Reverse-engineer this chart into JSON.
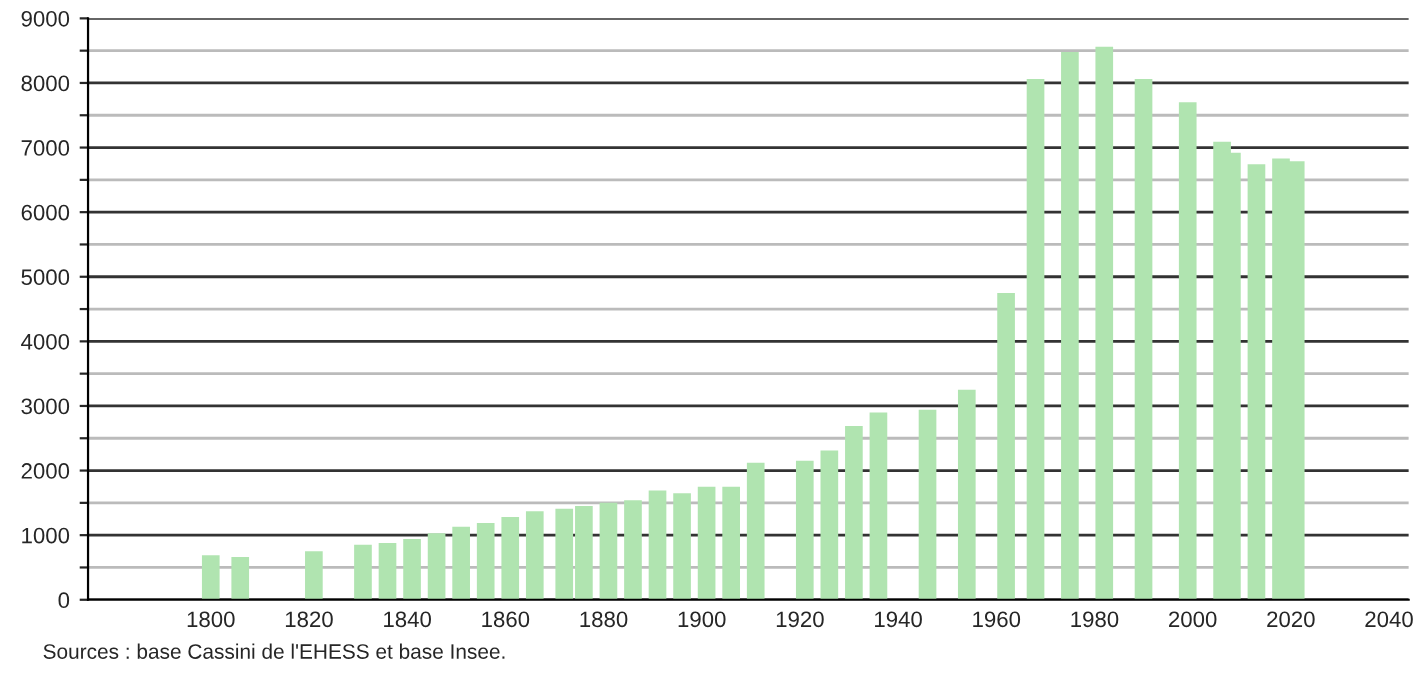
{
  "chart_data": {
    "type": "bar",
    "x": [
      1800,
      1806,
      1821,
      1831,
      1836,
      1841,
      1846,
      1851,
      1856,
      1861,
      1866,
      1872,
      1876,
      1881,
      1886,
      1891,
      1896,
      1901,
      1906,
      1911,
      1921,
      1926,
      1931,
      1936,
      1946,
      1954,
      1962,
      1968,
      1975,
      1982,
      1990,
      1999,
      2006,
      2008,
      2013,
      2018,
      2021
    ],
    "values": [
      690,
      660,
      750,
      850,
      880,
      940,
      1030,
      1130,
      1190,
      1280,
      1370,
      1410,
      1450,
      1500,
      1540,
      1690,
      1650,
      1750,
      1750,
      2120,
      2150,
      2310,
      2690,
      2900,
      2940,
      3250,
      4750,
      8060,
      8480,
      8560,
      8060,
      7700,
      7090,
      6920,
      6740,
      6830,
      6790
    ],
    "color": "#b0e4b0",
    "xlim": [
      1775,
      2044
    ],
    "xticks": [
      1800,
      1820,
      1840,
      1860,
      1880,
      1900,
      1920,
      1940,
      1960,
      1980,
      2000,
      2020,
      2040
    ],
    "ylim": [
      0,
      9000
    ],
    "yticks": [
      0,
      {
        "value": 500,
        "label": null
      },
      1000,
      {
        "value": 1500,
        "label": null
      },
      2000,
      {
        "value": 2500,
        "label": null
      },
      3000,
      {
        "value": 3500,
        "label": null
      },
      4000,
      {
        "value": 4500,
        "label": null
      },
      5000,
      {
        "value": 5500,
        "label": null
      },
      6000,
      {
        "value": 6500,
        "label": null
      },
      7000,
      {
        "value": 7500,
        "label": null
      },
      8000,
      {
        "value": 8500,
        "label": null
      },
      9000
    ],
    "grid": "y",
    "legend": false,
    "annotations": [
      "Sources : base Cassini de l'EHESS et base Insee."
    ]
  }
}
